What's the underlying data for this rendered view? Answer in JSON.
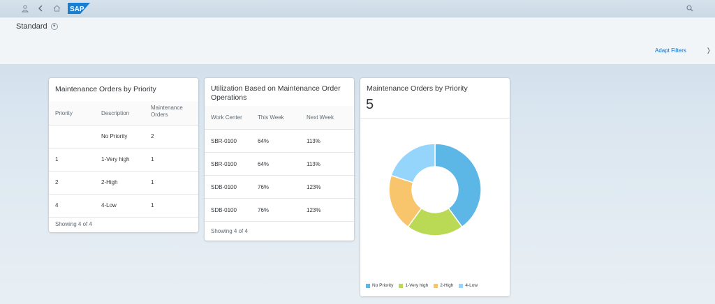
{
  "shell": {
    "logo_text": "SAP",
    "icons": [
      "user-icon",
      "back-icon",
      "home-icon",
      "search-icon"
    ]
  },
  "header": {
    "variant": "Standard",
    "adapt_filters": "Adapt Filters"
  },
  "card1": {
    "title": "Maintenance Orders by Priority",
    "columns": [
      "Priority",
      "Description",
      "Maintenance Orders"
    ],
    "rows": [
      {
        "priority": "",
        "description": "No Priority",
        "orders": "2"
      },
      {
        "priority": "1",
        "description": "1-Very high",
        "orders": "1"
      },
      {
        "priority": "2",
        "description": "2-High",
        "orders": "1"
      },
      {
        "priority": "4",
        "description": "4-Low",
        "orders": "1"
      }
    ],
    "footer": "Showing 4 of 4"
  },
  "card2": {
    "title": "Utilization Based on Maintenance Order Operations",
    "columns": [
      "Work Center",
      "This Week",
      "Next Week"
    ],
    "rows": [
      {
        "work_center": "SBR-0100",
        "this_week": "64%",
        "next_week": "113%"
      },
      {
        "work_center": "SBR-0100",
        "this_week": "64%",
        "next_week": "113%"
      },
      {
        "work_center": "SDB-0100",
        "this_week": "76%",
        "next_week": "123%"
      },
      {
        "work_center": "SDB-0100",
        "this_week": "76%",
        "next_week": "123%"
      }
    ],
    "footer": "Showing 4 of 4"
  },
  "card3": {
    "title": "Maintenance Orders by Priority",
    "kpi": "5"
  },
  "chart_data": {
    "type": "pie",
    "categories": [
      "No Priority",
      "1-Very high",
      "2-High",
      "4-Low"
    ],
    "values": [
      2,
      1,
      1,
      1
    ],
    "colors": [
      "#5cb6e6",
      "#bada55",
      "#f9c56c",
      "#95d4fb"
    ],
    "donut": true,
    "legend": "bottom"
  },
  "colors": {
    "accent": "#0a6ed1",
    "shell_bg": "#cbd9e5"
  }
}
